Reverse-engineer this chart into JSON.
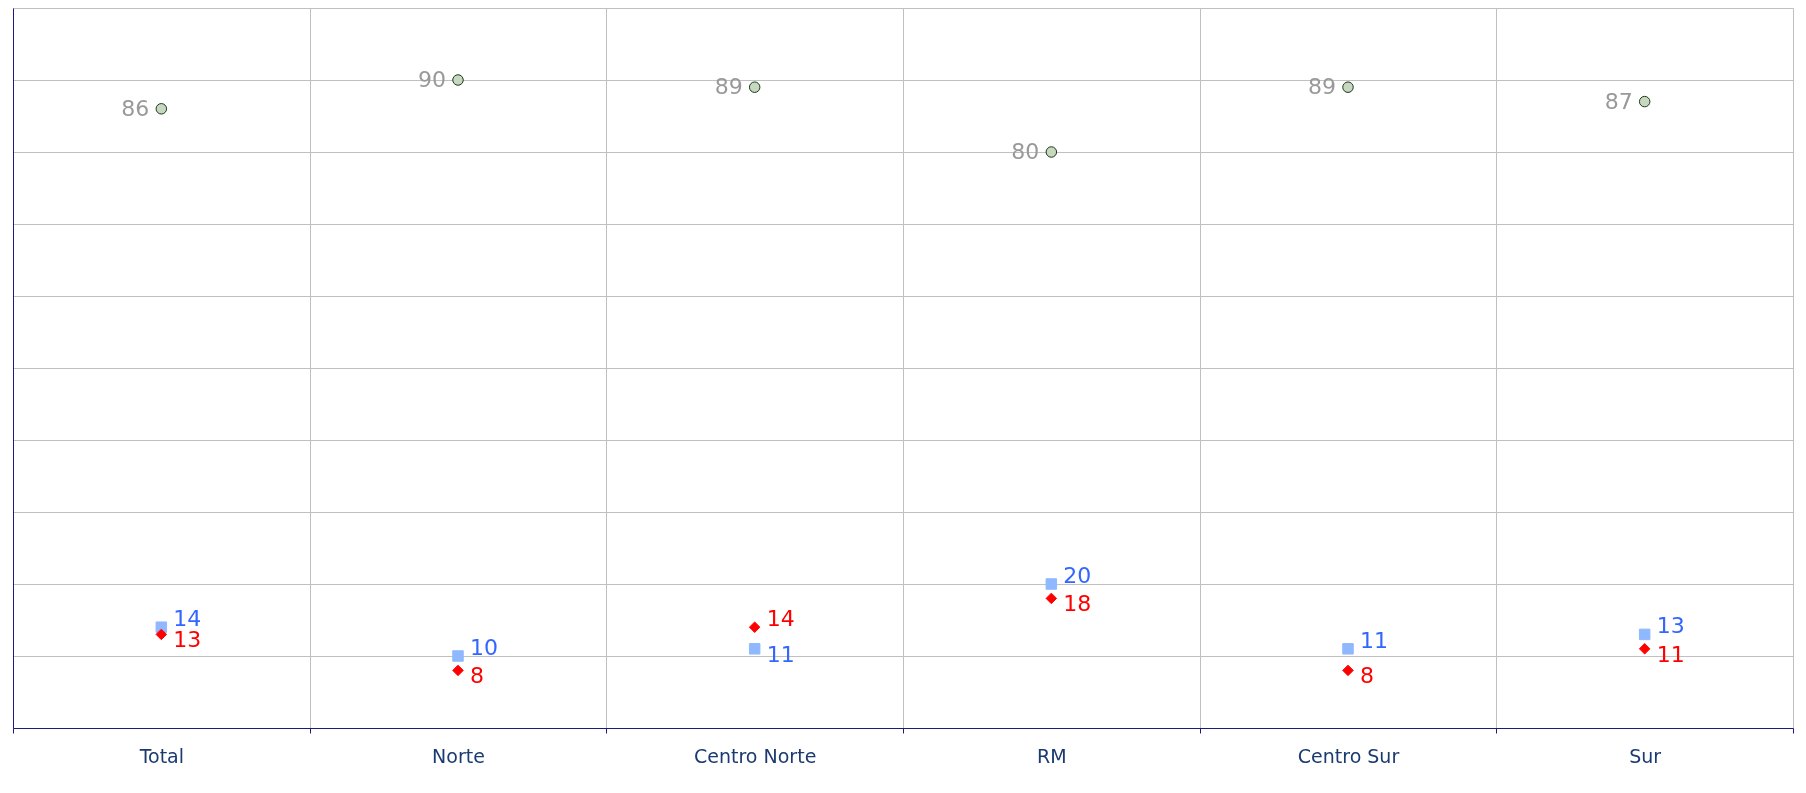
{
  "chart_data": {
    "type": "scatter",
    "categories": [
      "Total",
      "Norte",
      "Centro Norte",
      "RM",
      "Centro Sur",
      "Sur"
    ],
    "series": [
      {
        "color": "#c8d8c0",
        "marker": "circle",
        "values": [
          86,
          90,
          89,
          80,
          89,
          87
        ]
      },
      {
        "color": "#8fb8ff",
        "marker": "square",
        "values": [
          14,
          10,
          11,
          20,
          11,
          13
        ]
      },
      {
        "color": "#ff0000",
        "marker": "diamond",
        "values": [
          13,
          8,
          14,
          18,
          8,
          11
        ]
      }
    ],
    "ylim": [
      0,
      100
    ],
    "yticks": [
      {
        "value": 0,
        "label": null
      },
      {
        "value": 10,
        "label": null
      },
      {
        "value": 20,
        "label": null
      },
      {
        "value": 30,
        "label": null
      },
      {
        "value": 40,
        "label": null
      },
      {
        "value": 50,
        "label": null
      },
      {
        "value": 60,
        "label": null
      },
      {
        "value": 70,
        "label": null
      },
      {
        "value": 80,
        "label": null
      },
      {
        "value": 90,
        "label": null
      },
      {
        "value": 100,
        "label": null
      }
    ],
    "tick_labels": "x",
    "grid": true,
    "data_labels": true
  }
}
